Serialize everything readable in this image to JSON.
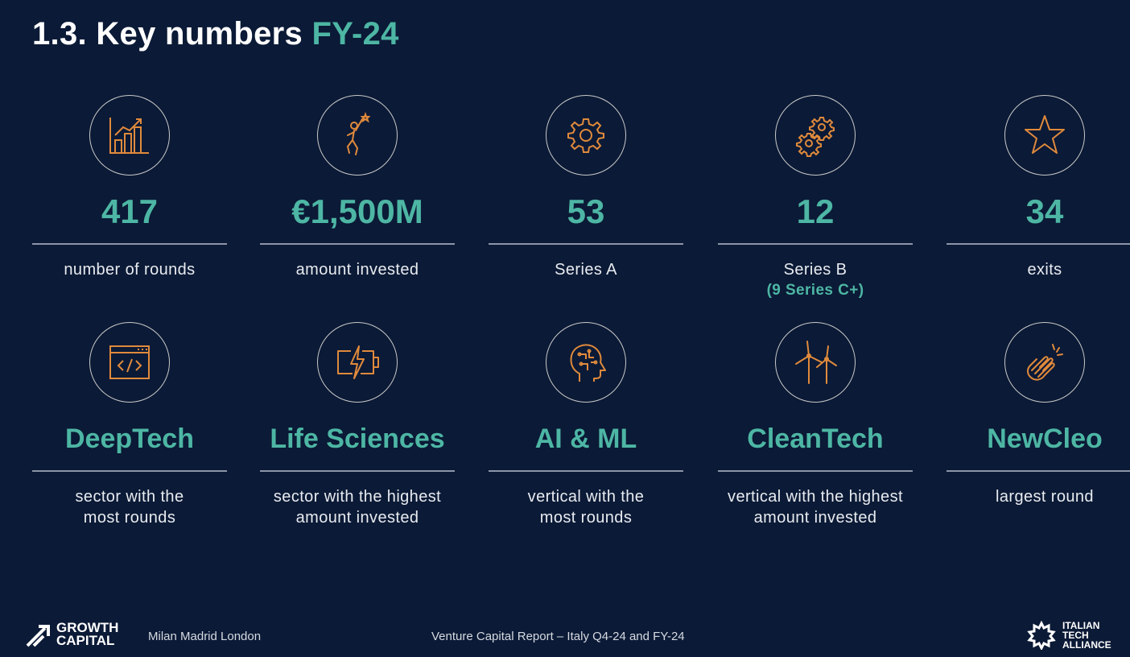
{
  "title": {
    "main": "1.3. Key numbers ",
    "accent": "FY-24"
  },
  "stats": [
    {
      "icon": "bar-chart-growth-icon",
      "value": "417",
      "desc": "number of rounds"
    },
    {
      "icon": "reaching-person-icon",
      "value": "€1,500M",
      "desc": "amount invested"
    },
    {
      "icon": "gear-icon",
      "value": "53",
      "desc": "Series A"
    },
    {
      "icon": "gears-icon",
      "value": "12",
      "desc": "Series B",
      "sub": "(9 Series C+)"
    },
    {
      "icon": "star-icon",
      "value": "34",
      "desc": "exits"
    }
  ],
  "sectors": [
    {
      "icon": "code-window-icon",
      "value": "DeepTech",
      "line1": "sector with the",
      "line2": "most rounds"
    },
    {
      "icon": "battery-charging-icon",
      "value": "Life Sciences",
      "line1": "sector with the highest",
      "line2": "amount invested"
    },
    {
      "icon": "ai-head-icon",
      "value": "AI & ML",
      "line1": "vertical with the",
      "line2": "most rounds"
    },
    {
      "icon": "wind-turbines-icon",
      "value": "CleanTech",
      "line1": "vertical with the highest",
      "line2": "amount invested"
    },
    {
      "icon": "clapping-hands-icon",
      "value": "NewCleo",
      "line1": "largest round",
      "line2": ""
    }
  ],
  "footer": {
    "logo_line1": "GROWTH",
    "logo_line2": "CAPITAL",
    "cities": "Milan Madrid London",
    "report": "Venture Capital Report – Italy Q4-24 and FY-24",
    "ita_line1": "ITALIAN",
    "ita_line2": "TECH",
    "ita_line3": "ALLIANCE"
  },
  "colors": {
    "background": "#0b1a36",
    "accent": "#4db6a4",
    "icon": "#e08a3c"
  }
}
